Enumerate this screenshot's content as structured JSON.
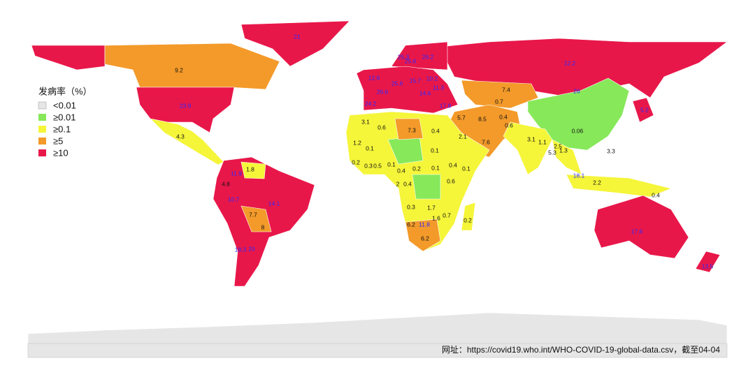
{
  "legend": {
    "title": "发病率（%）",
    "items": [
      "<0.01",
      "≥0.01",
      "≥0.1",
      "≥5",
      "≥10"
    ]
  },
  "labels": [
    "21",
    "9.2",
    "23.9",
    "4.3",
    "12.2",
    "7.4",
    "26",
    "0.06",
    "5.2",
    "0.7",
    "0.4",
    "0.6",
    "3.1",
    "8.5",
    "5.7",
    "17.8",
    "12.8",
    "25.6",
    "15.7",
    "10.2",
    "11.3",
    "14.6",
    "26.6",
    "24.2",
    "25.3",
    "25.6",
    "26.2",
    "3.1",
    "0.6",
    "7.3",
    "0.4",
    "2.1",
    "7.6",
    "1.2",
    "0.1",
    "0.1",
    "0.2",
    "0.3",
    "0.5",
    "0.1",
    "0.4",
    "0.2",
    "0.1",
    "0.4",
    "0.1",
    "2",
    "0.4",
    "0.6",
    "0.3",
    "1.7",
    "1.6",
    "0.7",
    "0.2",
    "6.2",
    "11.8",
    "6.2",
    "1.1",
    "2.5",
    "5.3",
    "1.3",
    "3.3",
    "18.1",
    "2.2",
    "0.4",
    "17.6",
    "13.5",
    "1.8",
    "11.9",
    "4.8",
    "10.7",
    "14.1",
    "7.7",
    "8",
    "18.3",
    "20"
  ],
  "source": "网址：https://covid19.who.int/WHO-COVID-19-global-data.csv，截至04-04"
}
